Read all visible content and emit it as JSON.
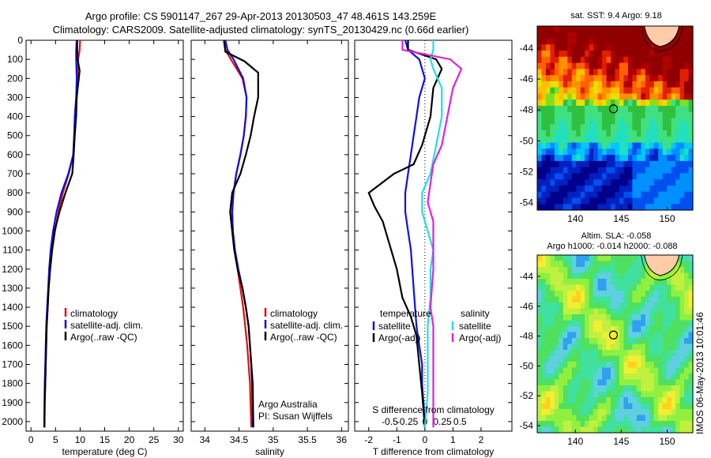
{
  "header": {
    "title_line1": "Argo profile: CS 5901147_267 29-Apr-2013 20130503_47 48.461S 143.259E",
    "title_line2": "Climatology: CARS2009. Satellite-adjusted climatology: synTS_20130429.nc (0.66d earlier)"
  },
  "stamp": "IMOS 06-May-2013 10:01:46",
  "colors": {
    "climatology": "#e01010",
    "satellite": "#1010e0",
    "argo": "#000000",
    "satellite_s": "#20e0e0",
    "argo_s": "#e020e0"
  },
  "chart_data": [
    {
      "type": "line",
      "id": "temperature",
      "xlabel": "temperature (deg C)",
      "ylabel": "",
      "xlim": [
        -1,
        31
      ],
      "ylim": [
        2050,
        0
      ],
      "xticks": [
        0,
        5,
        10,
        15,
        20,
        25,
        30
      ],
      "yticks": [
        0,
        100,
        200,
        300,
        400,
        500,
        600,
        700,
        800,
        900,
        1000,
        1100,
        1200,
        1300,
        1400,
        1500,
        1600,
        1700,
        1800,
        1900,
        2000
      ],
      "legend": [
        "climatology",
        "satellite-adj. clim.",
        "Argo(..raw -QC)"
      ],
      "series": [
        {
          "name": "climatology",
          "color": "climatology",
          "x": [
            10.0,
            9.9,
            9.6,
            9.5,
            9.3,
            9.0,
            8.8,
            8.6,
            7.7,
            6.5,
            5.6,
            4.9,
            4.3,
            3.9,
            3.6,
            3.4,
            3.2,
            3.1,
            3.0,
            2.9,
            2.8,
            2.75
          ],
          "y": [
            0,
            50,
            100,
            200,
            300,
            400,
            500,
            600,
            700,
            800,
            900,
            1000,
            1100,
            1200,
            1300,
            1400,
            1500,
            1600,
            1700,
            1800,
            1900,
            2030
          ]
        },
        {
          "name": "satellite-adj. clim.",
          "color": "satellite",
          "x": [
            9.3,
            9.2,
            9.2,
            9.3,
            9.2,
            8.9,
            8.8,
            8.6,
            7.6,
            6.2,
            5.2,
            4.5,
            4.0,
            3.7,
            3.5,
            3.3,
            3.1,
            3.0,
            2.9,
            2.8,
            2.75,
            2.7
          ],
          "y": [
            0,
            50,
            100,
            200,
            300,
            400,
            500,
            600,
            700,
            800,
            900,
            1000,
            1100,
            1200,
            1300,
            1400,
            1500,
            1600,
            1700,
            1800,
            1900,
            2030
          ]
        },
        {
          "name": "Argo(..raw -QC)",
          "color": "argo",
          "x": [
            9.4,
            9.4,
            9.5,
            9.9,
            9.3,
            9.2,
            8.9,
            8.7,
            8.4,
            7.0,
            5.8,
            4.8,
            4.3,
            3.9,
            3.6,
            3.4,
            3.2,
            3.1,
            3.0,
            2.9,
            2.8,
            2.75
          ],
          "y": [
            0,
            50,
            100,
            160,
            300,
            400,
            500,
            600,
            700,
            800,
            900,
            1000,
            1100,
            1200,
            1300,
            1400,
            1500,
            1600,
            1700,
            1800,
            1900,
            2030
          ]
        }
      ]
    },
    {
      "type": "line",
      "id": "salinity",
      "xlabel": "salinity",
      "xlim": [
        33.8,
        36.1
      ],
      "ylim": [
        2050,
        0
      ],
      "xticks": [
        34,
        34.5,
        35,
        35.5,
        36
      ],
      "legend": [
        "climatology",
        "satellite-adj. clim.",
        "Argo(..raw -QC)"
      ],
      "annotation": [
        "Argo Australia",
        "PI: Susan Wijffels"
      ],
      "series": [
        {
          "name": "climatology",
          "color": "climatology",
          "x": [
            34.28,
            34.3,
            34.38,
            34.55,
            34.61,
            34.6,
            34.57,
            34.52,
            34.46,
            34.42,
            34.4,
            34.41,
            34.44,
            34.48,
            34.52,
            34.56,
            34.59,
            34.62,
            34.64,
            34.66,
            34.68
          ],
          "y": [
            0,
            50,
            100,
            200,
            300,
            400,
            500,
            600,
            700,
            800,
            900,
            1000,
            1100,
            1200,
            1300,
            1400,
            1500,
            1600,
            1700,
            1800,
            2030
          ]
        },
        {
          "name": "satellite-adj. clim.",
          "color": "satellite",
          "x": [
            34.3,
            34.33,
            34.42,
            34.56,
            34.61,
            34.6,
            34.57,
            34.52,
            34.46,
            34.42,
            34.4,
            34.41,
            34.44,
            34.49,
            34.55,
            34.6,
            34.64,
            34.66,
            34.68,
            34.69,
            34.7
          ],
          "y": [
            0,
            50,
            100,
            200,
            300,
            400,
            500,
            600,
            700,
            800,
            900,
            1000,
            1100,
            1200,
            1300,
            1400,
            1500,
            1600,
            1700,
            1800,
            2030
          ]
        },
        {
          "name": "Argo(..raw -QC)",
          "color": "argo",
          "x": [
            34.28,
            34.3,
            34.58,
            34.78,
            34.78,
            34.72,
            34.67,
            34.6,
            34.52,
            34.4,
            34.37,
            34.4,
            34.43,
            34.48,
            34.55,
            34.6,
            34.64,
            34.66,
            34.68,
            34.7,
            34.71
          ],
          "y": [
            0,
            60,
            110,
            170,
            300,
            400,
            500,
            600,
            700,
            800,
            900,
            1000,
            1100,
            1200,
            1300,
            1400,
            1500,
            1600,
            1700,
            1800,
            2030
          ]
        }
      ]
    },
    {
      "type": "line",
      "id": "difference",
      "xlabel": "T difference from climatology",
      "xlabel_top": "S difference from climatology",
      "xlim": [
        -2.5,
        3.1
      ],
      "ylim": [
        2050,
        0
      ],
      "xticks": [
        -2,
        -1,
        0,
        1,
        2
      ],
      "xticks_s": [
        "-0.5",
        "-0.25",
        "0",
        "0.25",
        "0.5"
      ],
      "legend_t": [
        "temperature",
        "satellite",
        "Argo(-adj)"
      ],
      "legend_s": [
        "salinity",
        "satellite",
        "Argo(-adj)"
      ],
      "series": [
        {
          "name": "T satellite",
          "color": "satellite",
          "x": [
            -0.7,
            -0.6,
            -0.2,
            0.0,
            -0.2,
            -0.3,
            -0.4,
            -0.5,
            -0.6,
            -0.7,
            -0.7,
            -0.6,
            -0.5,
            -0.4,
            -0.3,
            -0.2,
            -0.1,
            -0.1,
            -0.05,
            0.0
          ],
          "y": [
            0,
            50,
            100,
            200,
            300,
            400,
            500,
            600,
            700,
            800,
            900,
            1000,
            1100,
            1300,
            1500,
            1600,
            1700,
            1800,
            1900,
            2030
          ]
        },
        {
          "name": "T Argo(-adj)",
          "color": "argo",
          "x": [
            -0.6,
            -0.6,
            0.4,
            0.6,
            0.3,
            0.2,
            -0.1,
            -0.4,
            -1.1,
            -2.0,
            -1.8,
            -1.5,
            -1.3,
            -1.0,
            -0.8,
            -0.5,
            -0.3,
            -0.2,
            -0.1,
            0.0
          ],
          "y": [
            0,
            50,
            100,
            150,
            250,
            400,
            550,
            650,
            700,
            800,
            870,
            950,
            1050,
            1200,
            1350,
            1450,
            1550,
            1700,
            1850,
            2030
          ]
        },
        {
          "name": "S satellite",
          "color": "satellite_s",
          "x": [
            0.3,
            0.3,
            0.2,
            0.3,
            0.6,
            0.6,
            0.4,
            0.2,
            -0.1,
            -0.1,
            0.1,
            0.3,
            0.2,
            0.2,
            0.1,
            0.1,
            0.1,
            0.0
          ],
          "y": [
            0,
            50,
            100,
            150,
            250,
            400,
            550,
            700,
            800,
            900,
            1000,
            1100,
            1200,
            1350,
            1500,
            1700,
            1850,
            2030
          ]
        },
        {
          "name": "S Argo(-adj)",
          "color": "argo_s",
          "x": [
            -0.8,
            -0.8,
            0.9,
            1.3,
            1.0,
            0.8,
            0.6,
            0.3,
            0.2,
            0.1,
            0.3,
            0.3,
            0.3,
            0.2,
            0.3,
            0.3,
            0.3,
            0.3
          ],
          "y": [
            0,
            50,
            100,
            150,
            250,
            400,
            550,
            650,
            750,
            850,
            950,
            1050,
            1200,
            1400,
            1500,
            1650,
            1850,
            2030
          ]
        }
      ]
    }
  ],
  "maps": [
    {
      "title": "sat. SST: 9.4 Argo: 9.18",
      "xticks": [
        "140",
        "145",
        "150"
      ],
      "yticks": [
        "-44",
        "-46",
        "-48",
        "-50",
        "-52",
        "-54"
      ]
    },
    {
      "title_line1": "Altim. SLA: -0.058",
      "title_line2": "Argo h1000: -0.014 h2000: -0.088",
      "xticks": [
        "140",
        "145",
        "150"
      ],
      "yticks": [
        "-44",
        "-46",
        "-48",
        "-50",
        "-52",
        "-54"
      ]
    }
  ]
}
